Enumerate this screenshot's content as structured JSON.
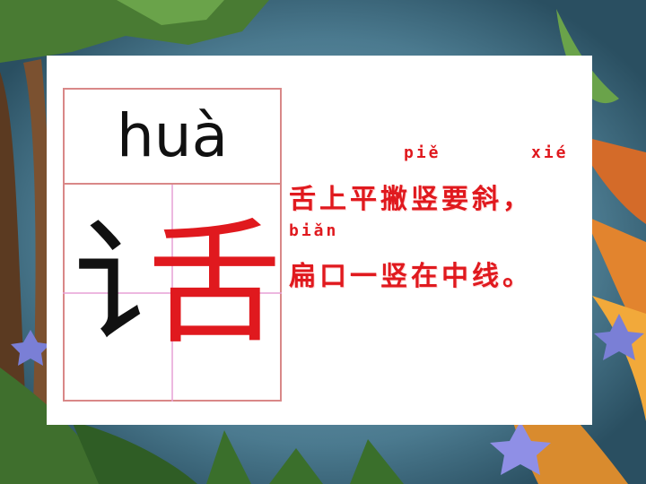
{
  "lesson": {
    "pinyin": "huà",
    "character_radical": "讠",
    "character_right": "舌",
    "rhyme_pinyin_1a": "piě",
    "rhyme_pinyin_1b": "xié",
    "rhyme_line_1": "舌上平撇竖要斜，",
    "rhyme_pinyin_2": "biǎn",
    "rhyme_line_2": "扁口一竖在中线。"
  },
  "colors": {
    "highlight": "#e0191e",
    "grid": "#d98888",
    "ink": "#111111",
    "background": "#2f5b70"
  }
}
